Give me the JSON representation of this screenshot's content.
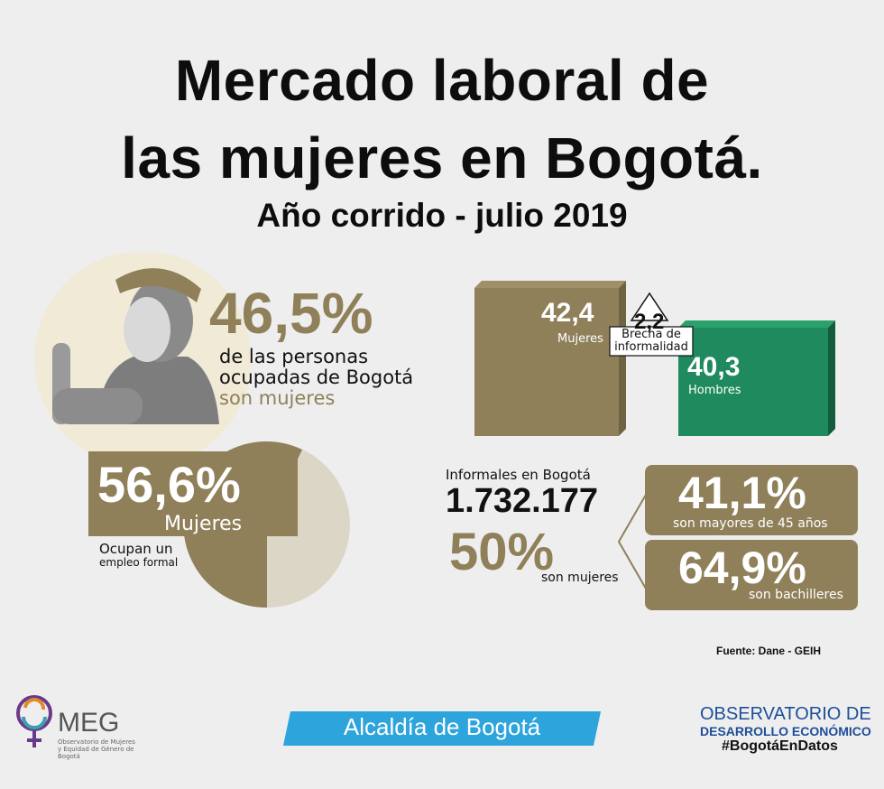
{
  "title": {
    "line1": "Mercado laboral de",
    "line2": "las mujeres en Bogotá.",
    "subtitle": "Año corrido - julio 2019"
  },
  "stat_ocupadas": {
    "value": "46,5%",
    "line1": "de las personas",
    "line2": "ocupadas de Bogotá",
    "line3": "son mujeres"
  },
  "stat_formal": {
    "value": "56,6%",
    "label": "Mujeres",
    "caption_line1": "Ocupan un",
    "caption_line2": "empleo formal"
  },
  "chart_data": {
    "type": "bar",
    "categories": [
      "Mujeres",
      "Hombres"
    ],
    "values": [
      42.4,
      40.3
    ],
    "value_labels": [
      "42,4",
      "40,3"
    ],
    "colors": [
      "#8f805a",
      "#1f8a5e"
    ],
    "gap_value": "2,2",
    "gap_label_line1": "Brecha de",
    "gap_label_line2": "informalidad"
  },
  "informales": {
    "label": "Informales en Bogotá",
    "count": "1.732.177",
    "pct": "50%",
    "pct_caption": "son mujeres",
    "box1_value": "41,1%",
    "box1_caption": "son mayores de 45 años",
    "box2_value": "64,9%",
    "box2_caption": "son bachilleres"
  },
  "source": "Fuente:  Dane - GEIH",
  "footer": {
    "omeg_name": "MEG",
    "omeg_small1": "Observatorio de Mujeres",
    "omeg_small2": "y Equidad de Género de",
    "omeg_small3": "Bogotá",
    "alcaldia": "Alcaldía de Bogotá",
    "obs_line1": "OBSERVATORIO DE",
    "obs_line2": "DESARROLLO ECONÓMICO",
    "hashtag": "#BogotáEnDatos"
  }
}
